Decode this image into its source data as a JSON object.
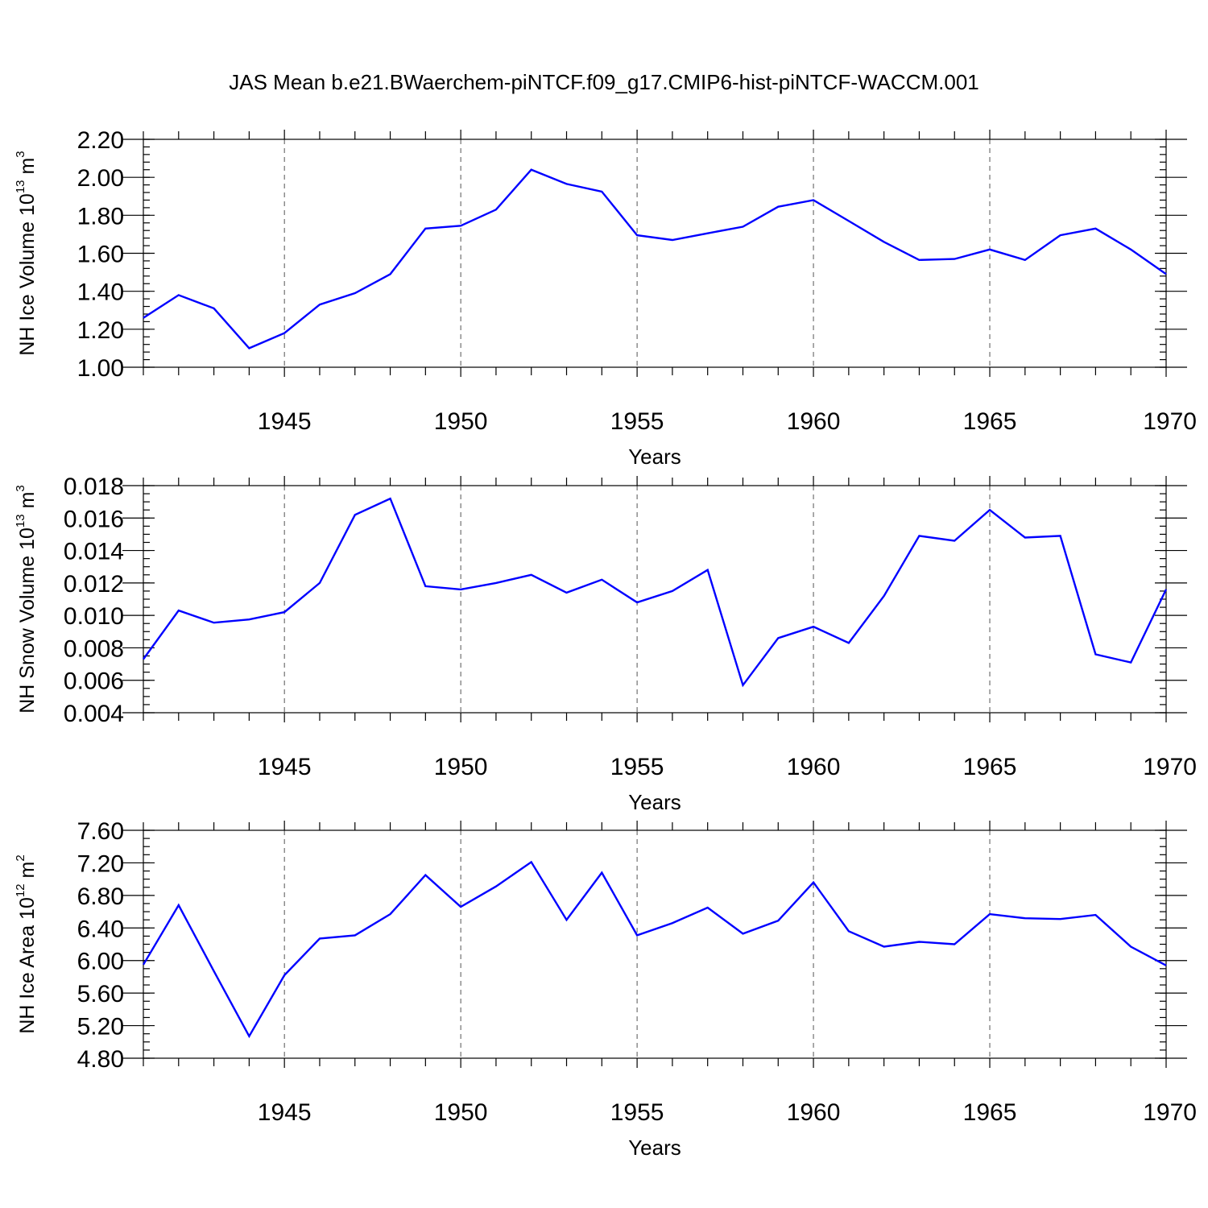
{
  "title": "JAS Mean b.e21.BWaerchem-piNTCF.f09_g17.CMIP6-hist-piNTCF-WACCM.001",
  "colors": {
    "line": "#0000ff",
    "axis": "#000000",
    "grid": "#555555"
  },
  "chart_data": [
    {
      "type": "line",
      "ylabel": {
        "main": "NH Ice Volume 10",
        "exp": "13",
        "unit": " m",
        "unit_exp": "3"
      },
      "xlabel": "Years",
      "xlim": [
        1941,
        1970
      ],
      "ylim": [
        1.0,
        2.2
      ],
      "yticks": [
        1.0,
        1.2,
        1.4,
        1.6,
        1.8,
        2.0,
        2.2
      ],
      "ytick_labels": [
        "1.00",
        "1.20",
        "1.40",
        "1.60",
        "1.80",
        "2.00",
        "2.20"
      ],
      "yminor_step": 0.04,
      "xticks": [
        1945,
        1950,
        1955,
        1960,
        1965,
        1970
      ],
      "xtick_labels": [
        "1945",
        "1950",
        "1955",
        "1960",
        "1965",
        "1970"
      ],
      "grid_x": true,
      "x": [
        1941,
        1942,
        1943,
        1944,
        1945,
        1946,
        1947,
        1948,
        1949,
        1950,
        1951,
        1952,
        1953,
        1954,
        1955,
        1956,
        1957,
        1958,
        1959,
        1960,
        1961,
        1962,
        1963,
        1964,
        1965,
        1966,
        1967,
        1968,
        1969,
        1970
      ],
      "values": [
        1.26,
        1.38,
        1.31,
        1.1,
        1.18,
        1.33,
        1.39,
        1.49,
        1.73,
        1.745,
        1.83,
        2.04,
        1.965,
        1.925,
        1.695,
        1.67,
        1.705,
        1.74,
        1.845,
        1.88,
        1.77,
        1.66,
        1.565,
        1.57,
        1.62,
        1.565,
        1.695,
        1.73,
        1.62,
        1.49
      ]
    },
    {
      "type": "line",
      "ylabel": {
        "main": "NH Snow Volume 10",
        "exp": "13",
        "unit": " m",
        "unit_exp": "3"
      },
      "xlabel": "Years",
      "xlim": [
        1941,
        1970
      ],
      "ylim": [
        0.004,
        0.018
      ],
      "yticks": [
        0.004,
        0.006,
        0.008,
        0.01,
        0.012,
        0.014,
        0.016,
        0.018
      ],
      "ytick_labels": [
        "0.004",
        "0.006",
        "0.008",
        "0.010",
        "0.012",
        "0.014",
        "0.016",
        "0.018"
      ],
      "yminor_step": 0.0005,
      "xticks": [
        1945,
        1950,
        1955,
        1960,
        1965,
        1970
      ],
      "xtick_labels": [
        "1945",
        "1950",
        "1955",
        "1960",
        "1965",
        "1970"
      ],
      "grid_x": true,
      "x": [
        1941,
        1942,
        1943,
        1944,
        1945,
        1946,
        1947,
        1948,
        1949,
        1950,
        1951,
        1952,
        1953,
        1954,
        1955,
        1956,
        1957,
        1958,
        1959,
        1960,
        1961,
        1962,
        1963,
        1964,
        1965,
        1966,
        1967,
        1968,
        1969,
        1970
      ],
      "values": [
        0.0073,
        0.0103,
        0.00955,
        0.00975,
        0.0102,
        0.012,
        0.0162,
        0.0172,
        0.0118,
        0.0116,
        0.012,
        0.0125,
        0.0114,
        0.0122,
        0.0108,
        0.0115,
        0.0128,
        0.0057,
        0.0086,
        0.0093,
        0.0083,
        0.0112,
        0.0149,
        0.0146,
        0.0165,
        0.0148,
        0.0149,
        0.0076,
        0.0071,
        0.0116
      ]
    },
    {
      "type": "line",
      "ylabel": {
        "main": "NH Ice Area 10",
        "exp": "12",
        "unit": " m",
        "unit_exp": "2"
      },
      "xlabel": "Years",
      "xlim": [
        1941,
        1970
      ],
      "ylim": [
        4.8,
        7.6
      ],
      "yticks": [
        4.8,
        5.2,
        5.6,
        6.0,
        6.4,
        6.8,
        7.2,
        7.6
      ],
      "ytick_labels": [
        "4.80",
        "5.20",
        "5.60",
        "6.00",
        "6.40",
        "6.80",
        "7.20",
        "7.60"
      ],
      "yminor_step": 0.1,
      "xticks": [
        1945,
        1950,
        1955,
        1960,
        1965,
        1970
      ],
      "xtick_labels": [
        "1945",
        "1950",
        "1955",
        "1960",
        "1965",
        "1970"
      ],
      "grid_x": true,
      "x": [
        1941,
        1942,
        1943,
        1944,
        1945,
        1946,
        1947,
        1948,
        1949,
        1950,
        1951,
        1952,
        1953,
        1954,
        1955,
        1956,
        1957,
        1958,
        1959,
        1960,
        1961,
        1962,
        1963,
        1964,
        1965,
        1966,
        1967,
        1968,
        1969,
        1970
      ],
      "values": [
        5.95,
        6.68,
        5.87,
        5.07,
        5.82,
        6.27,
        6.31,
        6.57,
        7.05,
        6.66,
        6.91,
        7.21,
        6.5,
        7.08,
        6.31,
        6.46,
        6.65,
        6.33,
        6.49,
        6.96,
        6.36,
        6.17,
        6.23,
        6.2,
        6.57,
        6.52,
        6.51,
        6.56,
        6.17,
        5.94
      ]
    }
  ]
}
